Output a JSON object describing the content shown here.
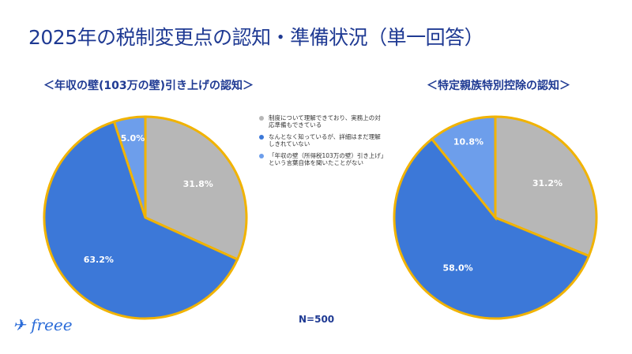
{
  "title": "2025年の税制変更点の認知・準備状況（単一回答）",
  "footnote": "N=500",
  "logo": "freee",
  "legend": [
    {
      "label": "制度について理解できており、実務上の対応準備もできている",
      "color": "#b7b7b7"
    },
    {
      "label": "なんとなく知っているが、詳細はまだ理解しきれていない",
      "color": "#3c78d8"
    },
    {
      "label": "「年収の壁（所得税103万の壁）引き上げ」という言葉自体を聞いたことがない",
      "color": "#6d9eeb"
    }
  ],
  "chart_data": [
    {
      "type": "pie",
      "title": "＜年収の壁(103万の壁)引き上げの認知＞",
      "values": [
        31.8,
        63.2,
        5.0
      ],
      "labels": [
        "31.8%",
        "63.2%",
        "5.0%"
      ],
      "colors": [
        "#b7b7b7",
        "#3c78d8",
        "#6d9eeb"
      ],
      "edge_color": "#f1b300"
    },
    {
      "type": "pie",
      "title": "＜特定親族特別控除の認知＞",
      "values": [
        31.2,
        58.0,
        10.8
      ],
      "labels": [
        "31.2%",
        "58.0%",
        "10.8%"
      ],
      "colors": [
        "#b7b7b7",
        "#3c78d8",
        "#6d9eeb"
      ],
      "edge_color": "#f1b300"
    }
  ]
}
